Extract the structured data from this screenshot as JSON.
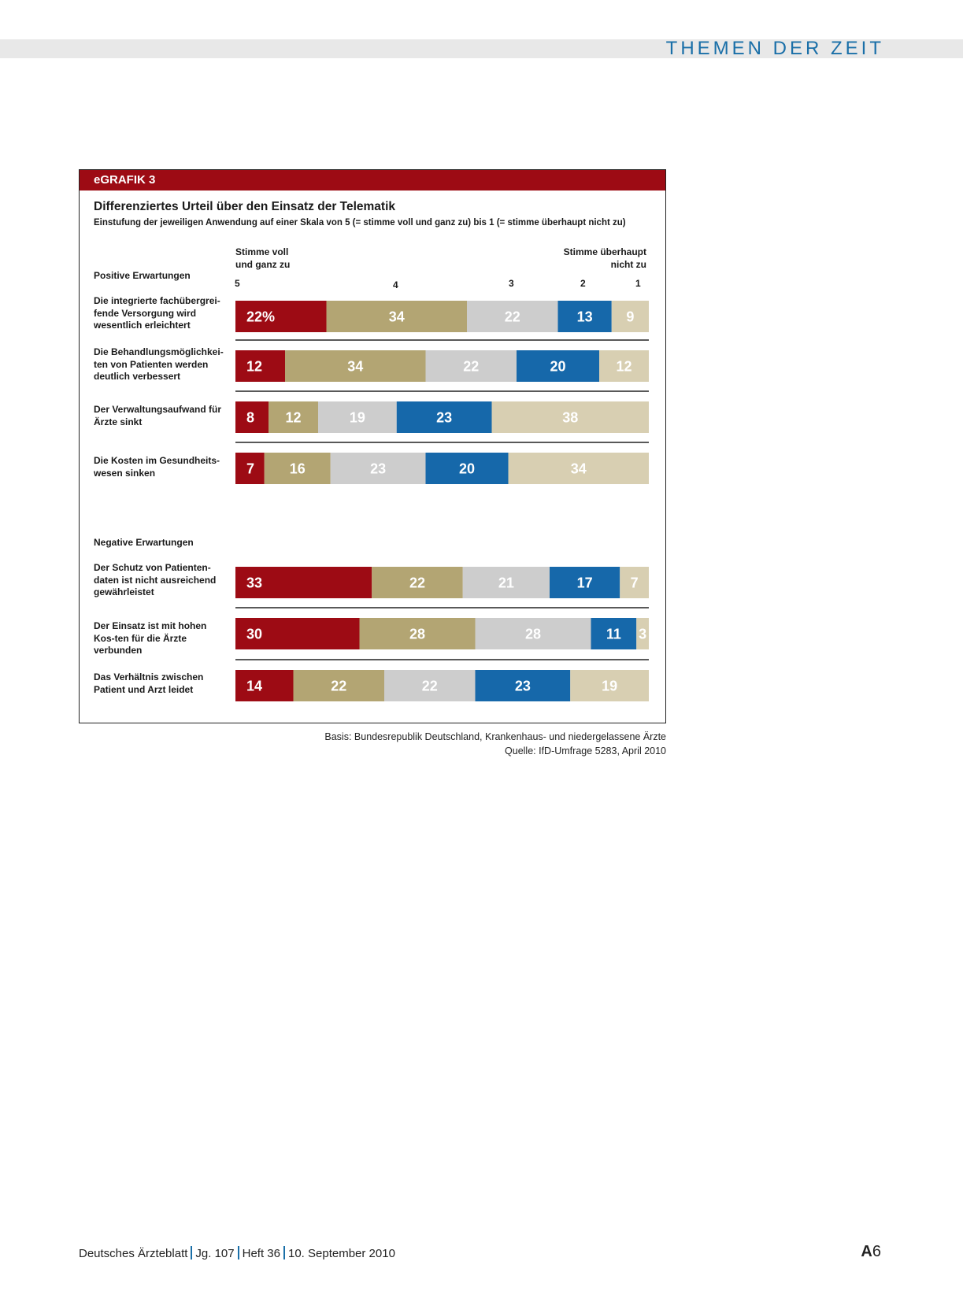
{
  "page": {
    "section_title": "THEMEN DER ZEIT",
    "source_basis": "Basis: Bundesrepublik Deutschland, Krankenhaus- und niedergelassene Ärzte",
    "source_quelle": "Quelle: IfD-Umfrage 5283, April 2010",
    "footer": {
      "journal": "Deutsches Ärzteblatt",
      "volume": "Jg. 107",
      "issue": "Heft 36",
      "date": "10. September 2010",
      "page_prefix": "A",
      "page_number": "6"
    }
  },
  "colors": {
    "accent_red": "#9d0b14",
    "s5": "#9d0b14",
    "s4": "#b3a573",
    "s3": "#cdcdcd",
    "s2": "#1668aa",
    "s1": "#d8cfb2"
  },
  "chart_data": {
    "type": "bar",
    "orientation": "horizontal-stacked",
    "header": "eGRAFIK 3",
    "title": "Differenziertes Urteil über den Einsatz der Telematik",
    "subtitle": "Einstufung der jeweiligen Anwendung auf einer Skala von 5 (= stimme voll und ganz zu) bis 1 (= stimme überhaupt nicht zu)",
    "scale_left": "Stimme voll und ganz zu",
    "scale_right": "Stimme überhaupt nicht zu",
    "scale_points": [
      "5",
      "4",
      "3",
      "2",
      "1"
    ],
    "groups": [
      {
        "title": "Positive Erwartungen",
        "rows": [
          {
            "label": "Die integrierte fachübergrei-fende Versorgung wird wesentlich erleichtert",
            "values": [
              22,
              34,
              22,
              13,
              9
            ],
            "first_suffix": "%"
          },
          {
            "label": "Die Behandlungsmöglichkei-ten von Patienten werden deutlich verbessert",
            "values": [
              12,
              34,
              22,
              20,
              12
            ]
          },
          {
            "label": "Der Verwaltungsaufwand für Ärzte sinkt",
            "values": [
              8,
              12,
              19,
              23,
              38
            ]
          },
          {
            "label": "Die Kosten im Gesundheits-wesen sinken",
            "values": [
              7,
              16,
              23,
              20,
              34
            ]
          }
        ]
      },
      {
        "title": "Negative Erwartungen",
        "rows": [
          {
            "label": "Der Schutz von Patienten-daten ist nicht ausreichend gewährleistet",
            "values": [
              33,
              22,
              21,
              17,
              7
            ]
          },
          {
            "label": "Der Einsatz ist mit hohen Kos-ten für die Ärzte verbunden",
            "values": [
              30,
              28,
              28,
              11,
              3
            ]
          },
          {
            "label": "Das Verhältnis zwischen Patient und Arzt leidet",
            "values": [
              14,
              22,
              22,
              23,
              19
            ]
          }
        ]
      }
    ]
  }
}
